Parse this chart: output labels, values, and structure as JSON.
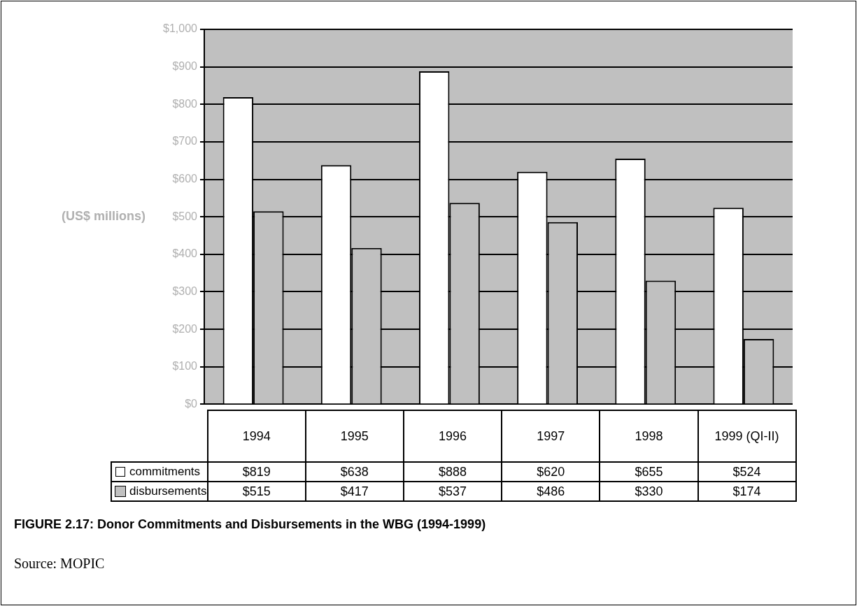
{
  "chart_data": {
    "type": "bar",
    "title": "FIGURE 2.17: Donor Commitments and Disbursements in the WBG (1994-1999)",
    "ylabel": "(US$ millions)",
    "annotations": [
      "Source: MOPIC"
    ],
    "categories": [
      "1994",
      "1995",
      "1996",
      "1997",
      "1998",
      "1999 (QI-II)"
    ],
    "series": [
      {
        "name": "commitments",
        "color": "#ffffff",
        "values": [
          819,
          638,
          888,
          620,
          655,
          524
        ],
        "value_labels": [
          "$819",
          "$638",
          "$888",
          "$620",
          "$655",
          "$524"
        ]
      },
      {
        "name": "disbursements",
        "color": "#c0c0c0",
        "values": [
          515,
          417,
          537,
          486,
          330,
          174
        ],
        "value_labels": [
          "$515",
          "$417",
          "$537",
          "$486",
          "$330",
          "$174"
        ]
      }
    ],
    "ylim": [
      0,
      1000
    ],
    "yticks": [
      {
        "value": 0,
        "label": "$0"
      },
      {
        "value": 100,
        "label": "$100"
      },
      {
        "value": 200,
        "label": "$200"
      },
      {
        "value": 300,
        "label": "$300"
      },
      {
        "value": 400,
        "label": "$400"
      },
      {
        "value": 500,
        "label": "$500"
      },
      {
        "value": 600,
        "label": "$600"
      },
      {
        "value": 700,
        "label": "$700"
      },
      {
        "value": 800,
        "label": "$800"
      },
      {
        "value": 900,
        "label": "$900"
      },
      {
        "value": 1000,
        "label": "$1,000"
      }
    ],
    "grid": "y",
    "legend": "bottom"
  }
}
